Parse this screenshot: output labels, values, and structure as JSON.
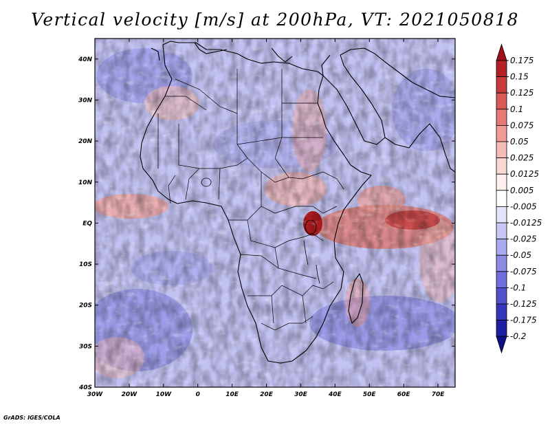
{
  "title": "Vertical velocity [m/s] at 200hPa, VT: 2021050818",
  "credit": "GrADS: IGES/COLA",
  "map": {
    "lon_range": [
      -30,
      75
    ],
    "lat_range": [
      -40,
      45
    ],
    "lon_ticks": [
      "30W",
      "20W",
      "10W",
      "0",
      "10E",
      "20E",
      "30E",
      "40E",
      "50E",
      "60E",
      "70E"
    ],
    "lat_ticks": [
      "40N",
      "30N",
      "20N",
      "10N",
      "EQ",
      "10S",
      "20S",
      "30S",
      "40S"
    ],
    "field": "vertical velocity",
    "units": "m/s",
    "level": "200hPa"
  },
  "colorbar": {
    "labels": [
      "0.175",
      "0.15",
      "0.125",
      "0.1",
      "0.075",
      "0.05",
      "0.025",
      "0.0125",
      "0.005",
      "-0.005",
      "-0.0125",
      "-0.025",
      "-0.05",
      "-0.075",
      "-0.1",
      "-0.125",
      "-0.175",
      "-0.2"
    ],
    "colors": [
      "#a0101a",
      "#b52026",
      "#c93a3a",
      "#dc5a56",
      "#e77b74",
      "#f09c95",
      "#f6bcb6",
      "#fad8d3",
      "#fff0ee",
      "#ffffff",
      "#e4e4fb",
      "#c8c8f5",
      "#aaaaee",
      "#8c8ce6",
      "#6e6edc",
      "#5050cf",
      "#3434bd",
      "#1e1ea6",
      "#0e0e8a"
    ]
  }
}
